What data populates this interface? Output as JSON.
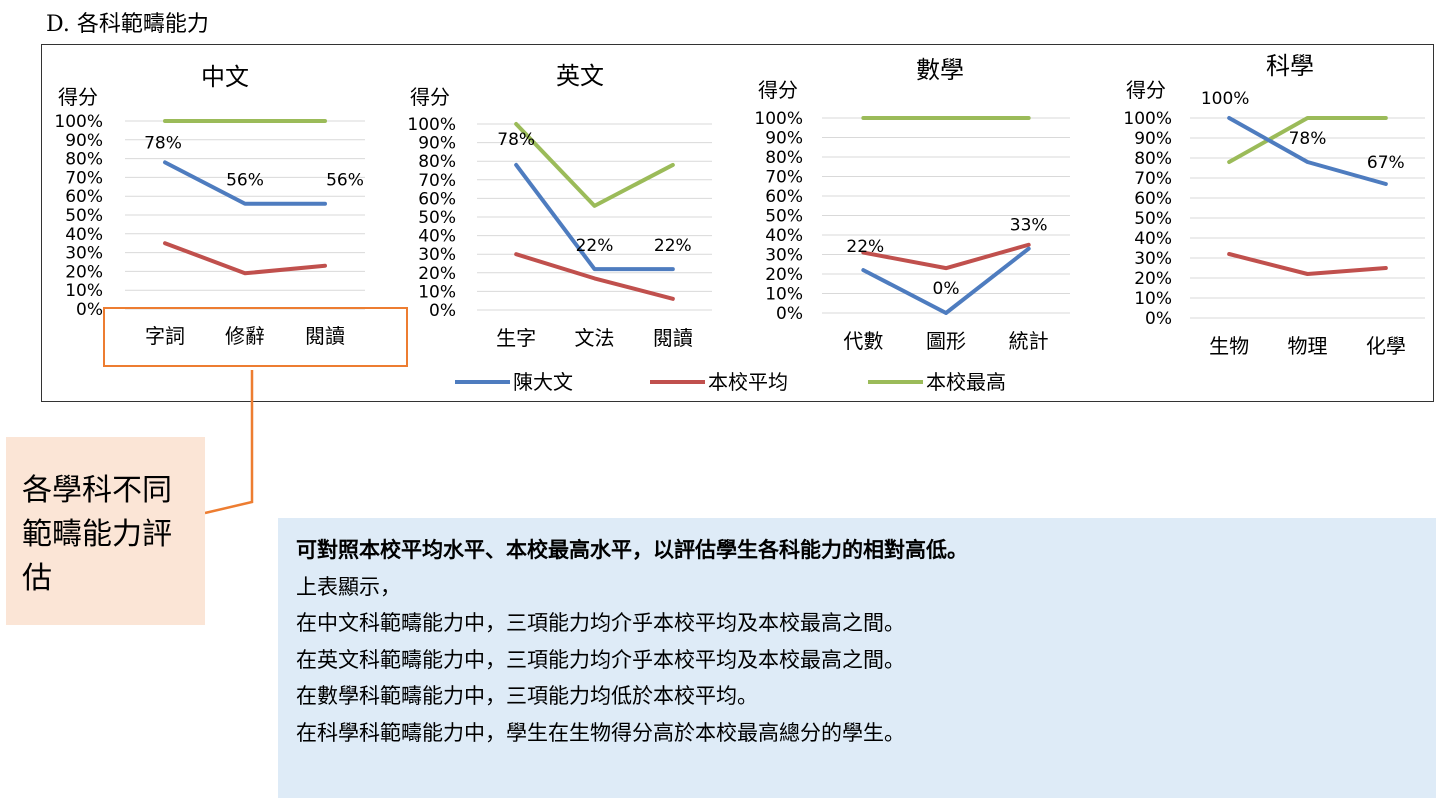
{
  "section_title": "D. 各科範疇能力",
  "legend": [
    {
      "name": "陳大文",
      "color": "#4e7cbf"
    },
    {
      "name": "本校平均",
      "color": "#c0504d"
    },
    {
      "name": "本校最高",
      "color": "#9bbb59"
    }
  ],
  "chart_data": [
    {
      "type": "line",
      "title": "中文",
      "ylabel": "得分",
      "ylim": [
        0,
        100
      ],
      "yticks": [
        "0%",
        "10%",
        "20%",
        "30%",
        "40%",
        "50%",
        "60%",
        "70%",
        "80%",
        "90%",
        "100%"
      ],
      "categories": [
        "字詞",
        "修辭",
        "閱讀"
      ],
      "series": [
        {
          "name": "陳大文",
          "values": [
            78,
            56,
            56
          ],
          "labels": [
            "78%",
            "56%",
            "56%"
          ]
        },
        {
          "name": "本校平均",
          "values": [
            35,
            19,
            23
          ]
        },
        {
          "name": "本校最高",
          "values": [
            100,
            100,
            100
          ]
        }
      ]
    },
    {
      "type": "line",
      "title": "英文",
      "ylabel": "得分",
      "ylim": [
        0,
        100
      ],
      "yticks": [
        "0%",
        "10%",
        "20%",
        "30%",
        "40%",
        "50%",
        "60%",
        "70%",
        "80%",
        "90%",
        "100%"
      ],
      "categories": [
        "生字",
        "文法",
        "閱讀"
      ],
      "series": [
        {
          "name": "陳大文",
          "values": [
            78,
            22,
            22
          ],
          "labels": [
            "78%",
            "22%",
            "22%"
          ]
        },
        {
          "name": "本校平均",
          "values": [
            30,
            17,
            6
          ]
        },
        {
          "name": "本校最高",
          "values": [
            100,
            56,
            78
          ]
        }
      ]
    },
    {
      "type": "line",
      "title": "數學",
      "ylabel": "得分",
      "ylim": [
        0,
        100
      ],
      "yticks": [
        "0%",
        "10%",
        "20%",
        "30%",
        "40%",
        "50%",
        "60%",
        "70%",
        "80%",
        "90%",
        "100%"
      ],
      "categories": [
        "代數",
        "圖形",
        "統計"
      ],
      "series": [
        {
          "name": "陳大文",
          "values": [
            22,
            0,
            33
          ],
          "labels": [
            "22%",
            "0%",
            "33%"
          ]
        },
        {
          "name": "本校平均",
          "values": [
            31,
            23,
            35
          ]
        },
        {
          "name": "本校最高",
          "values": [
            100,
            100,
            100
          ]
        }
      ]
    },
    {
      "type": "line",
      "title": "科學",
      "ylabel": "得分",
      "ylim": [
        0,
        100
      ],
      "yticks": [
        "0%",
        "10%",
        "20%",
        "30%",
        "40%",
        "50%",
        "60%",
        "70%",
        "80%",
        "90%",
        "100%"
      ],
      "categories": [
        "生物",
        "物理",
        "化學"
      ],
      "series": [
        {
          "name": "陳大文",
          "values": [
            100,
            78,
            67
          ],
          "labels": [
            "100%",
            "78%",
            "67%"
          ]
        },
        {
          "name": "本校平均",
          "values": [
            32,
            22,
            25
          ]
        },
        {
          "name": "本校最高",
          "values": [
            78,
            100,
            100
          ]
        }
      ]
    }
  ],
  "callout": {
    "label": "各學科不同範疇能力評估",
    "color": "#ed7d31"
  },
  "info": {
    "headline": "可對照本校平均水平、本校最高水平，以評估學生各科能力的相對高低。",
    "lines": [
      "上表顯示，",
      "在中文科範疇能力中，三項能力均介乎本校平均及本校最高之間。",
      "在英文科範疇能力中，三項能力均介乎本校平均及本校最高之間。",
      "在數學科範疇能力中，三項能力均低於本校平均。",
      "在科學科範疇能力中，學生在生物得分高於本校最高總分的學生。"
    ]
  }
}
